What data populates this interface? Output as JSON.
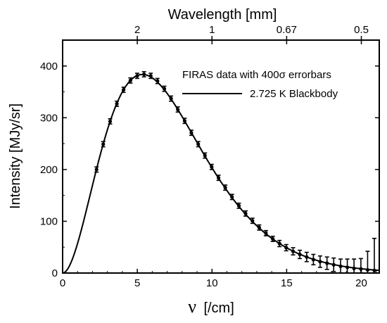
{
  "chart_data": {
    "type": "scatter",
    "title": "",
    "xlabel_symbol": "ν",
    "xlabel_unit": "[/cm]",
    "ylabel": "Intensity [MJy/sr]",
    "top_axis_label": "Wavelength [mm]",
    "xlim": [
      0,
      21.2
    ],
    "ylim": [
      0,
      450
    ],
    "x_ticks": [
      "0",
      "5",
      "10",
      "15",
      "20"
    ],
    "y_ticks": [
      "0",
      "100",
      "200",
      "300",
      "400"
    ],
    "top_ticks": [
      {
        "label": "2",
        "nu": 5
      },
      {
        "label": "1",
        "nu": 10
      },
      {
        "label": "0.67",
        "nu": 15
      },
      {
        "label": "0.5",
        "nu": 20
      }
    ],
    "legend_position": "top-right",
    "legend": [
      {
        "label": "FIRAS data with 400σ errorbars",
        "kind": "points"
      },
      {
        "label": "2.725 K Blackbody",
        "kind": "line"
      }
    ],
    "series": [
      {
        "kind": "points",
        "x": [
          2.27,
          2.72,
          3.18,
          3.63,
          4.08,
          4.54,
          4.99,
          5.45,
          5.9,
          6.35,
          6.81,
          7.26,
          7.71,
          8.17,
          8.62,
          9.08,
          9.53,
          9.98,
          10.44,
          10.89,
          11.34,
          11.8,
          12.25,
          12.71,
          13.16,
          13.61,
          14.07,
          14.52,
          14.97,
          15.43,
          15.88,
          16.34,
          16.79,
          17.24,
          17.7,
          18.15,
          18.61,
          19.06,
          19.51,
          19.97,
          20.42,
          20.87
        ],
        "y": [
          200,
          249,
          293,
          327,
          354,
          372,
          381,
          384,
          381,
          371,
          356,
          337,
          316,
          294,
          271,
          249,
          227,
          205,
          184,
          165,
          147,
          130,
          115,
          101,
          88,
          77,
          66,
          57,
          49,
          42,
          36,
          31,
          26,
          22,
          19,
          16,
          13,
          11,
          9,
          8,
          6,
          5
        ],
        "err": [
          5,
          5,
          5,
          5,
          5,
          5,
          5,
          5,
          5,
          5,
          5,
          5,
          5,
          5,
          5,
          5,
          5,
          5,
          5,
          5,
          5,
          5,
          5,
          5,
          5,
          5,
          5,
          6,
          6,
          7,
          8,
          9,
          10,
          11,
          12,
          13,
          14,
          16,
          18,
          20,
          36,
          62
        ]
      },
      {
        "kind": "line",
        "temperature_K": 2.725,
        "x_range": [
          0,
          21.2
        ]
      }
    ]
  }
}
